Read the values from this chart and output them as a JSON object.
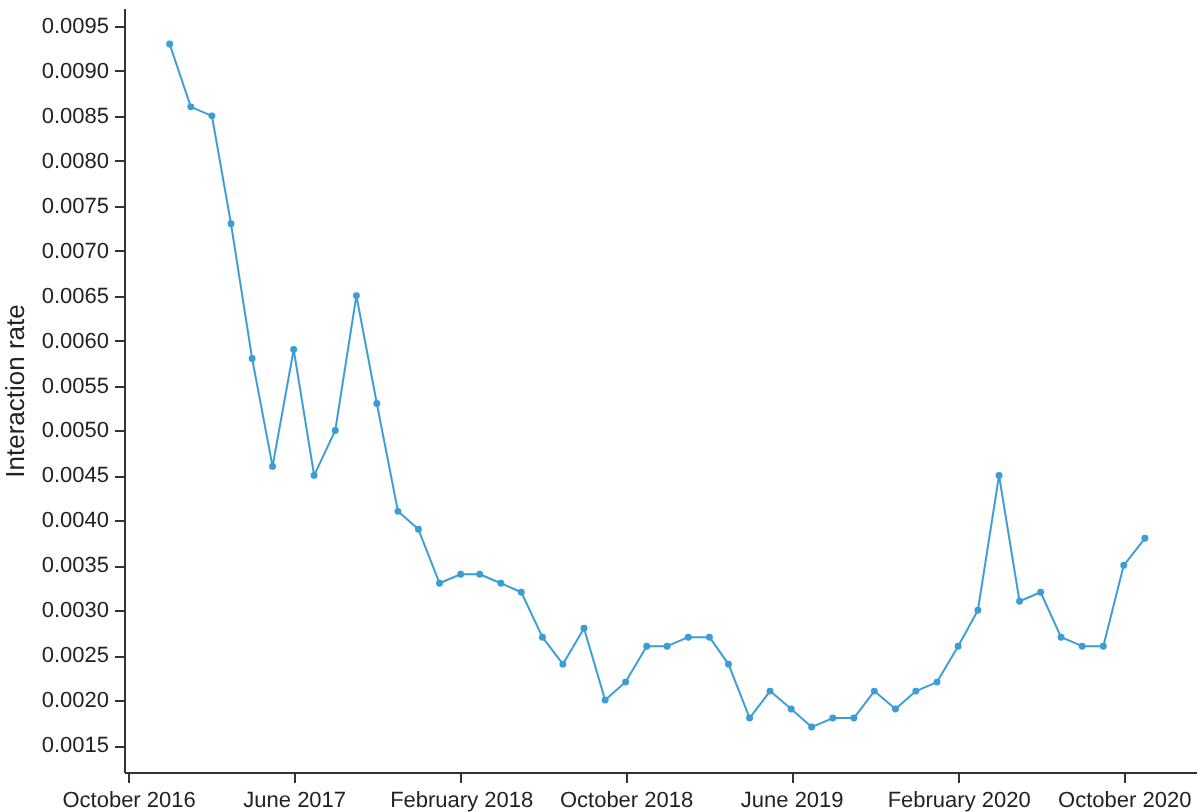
{
  "chart_data": {
    "type": "line",
    "ylabel": "Interaction rate",
    "x": [
      "2016-12",
      "2017-01",
      "2017-02",
      "2017-03",
      "2017-04",
      "2017-05",
      "2017-06",
      "2017-07",
      "2017-08",
      "2017-09",
      "2017-10",
      "2017-11",
      "2017-12",
      "2018-01",
      "2018-02",
      "2018-03",
      "2018-04",
      "2018-05",
      "2018-06",
      "2018-07",
      "2018-08",
      "2018-09",
      "2018-10",
      "2018-11",
      "2018-12",
      "2019-01",
      "2019-02",
      "2019-03",
      "2019-04",
      "2019-05",
      "2019-06",
      "2019-07",
      "2019-08",
      "2019-09",
      "2019-10",
      "2019-11",
      "2019-12",
      "2020-01",
      "2020-02",
      "2020-03",
      "2020-04",
      "2020-05",
      "2020-06",
      "2020-07",
      "2020-08",
      "2020-09",
      "2020-10",
      "2020-11"
    ],
    "series": [
      {
        "color": "#3b9dd6",
        "values": [
          0.0093,
          0.0086,
          0.0085,
          0.0073,
          0.0058,
          0.0046,
          0.0059,
          0.0045,
          0.005,
          0.0065,
          0.0053,
          0.0041,
          0.0039,
          0.0033,
          0.0034,
          0.0034,
          0.0033,
          0.0032,
          0.0027,
          0.0024,
          0.0028,
          0.002,
          0.0022,
          0.0026,
          0.0026,
          0.0027,
          0.0027,
          0.0024,
          0.0018,
          0.0021,
          0.0019,
          0.0017,
          0.0018,
          0.0018,
          0.0021,
          0.0019,
          0.0021,
          0.0022,
          0.0026,
          0.003,
          0.0045,
          0.0031,
          0.0032,
          0.0027,
          0.0026,
          0.0026,
          0.0035,
          0.0038
        ]
      }
    ],
    "xlim": [
      "2016-09-25",
      "2021-01-15"
    ],
    "xticks": [
      {
        "value": "2016-10",
        "label": "October 2016"
      },
      {
        "value": "2017-06",
        "label": "June 2017"
      },
      {
        "value": "2018-02",
        "label": "February 2018"
      },
      {
        "value": "2018-10",
        "label": "October 2018"
      },
      {
        "value": "2019-06",
        "label": "June 2019"
      },
      {
        "value": "2020-02",
        "label": "February 2020"
      },
      {
        "value": "2020-10",
        "label": "October 2020"
      }
    ],
    "ylim": [
      0.0012,
      0.0097
    ],
    "yticks": [
      {
        "value": 0.0015,
        "label": "0.0015"
      },
      {
        "value": 0.002,
        "label": "0.0020"
      },
      {
        "value": 0.0025,
        "label": "0.0025"
      },
      {
        "value": 0.003,
        "label": "0.0030"
      },
      {
        "value": 0.0035,
        "label": "0.0035"
      },
      {
        "value": 0.004,
        "label": "0.0040"
      },
      {
        "value": 0.0045,
        "label": "0.0045"
      },
      {
        "value": 0.005,
        "label": "0.0050"
      },
      {
        "value": 0.0055,
        "label": "0.0055"
      },
      {
        "value": 0.006,
        "label": "0.0060"
      },
      {
        "value": 0.0065,
        "label": "0.0065"
      },
      {
        "value": 0.007,
        "label": "0.0070"
      },
      {
        "value": 0.0075,
        "label": "0.0075"
      },
      {
        "value": 0.008,
        "label": "0.0080"
      },
      {
        "value": 0.0085,
        "label": "0.0085"
      },
      {
        "value": 0.009,
        "label": "0.0090"
      },
      {
        "value": 0.0095,
        "label": "0.0095"
      }
    ],
    "marker": "circle",
    "line_style": "solid",
    "grid": false
  }
}
